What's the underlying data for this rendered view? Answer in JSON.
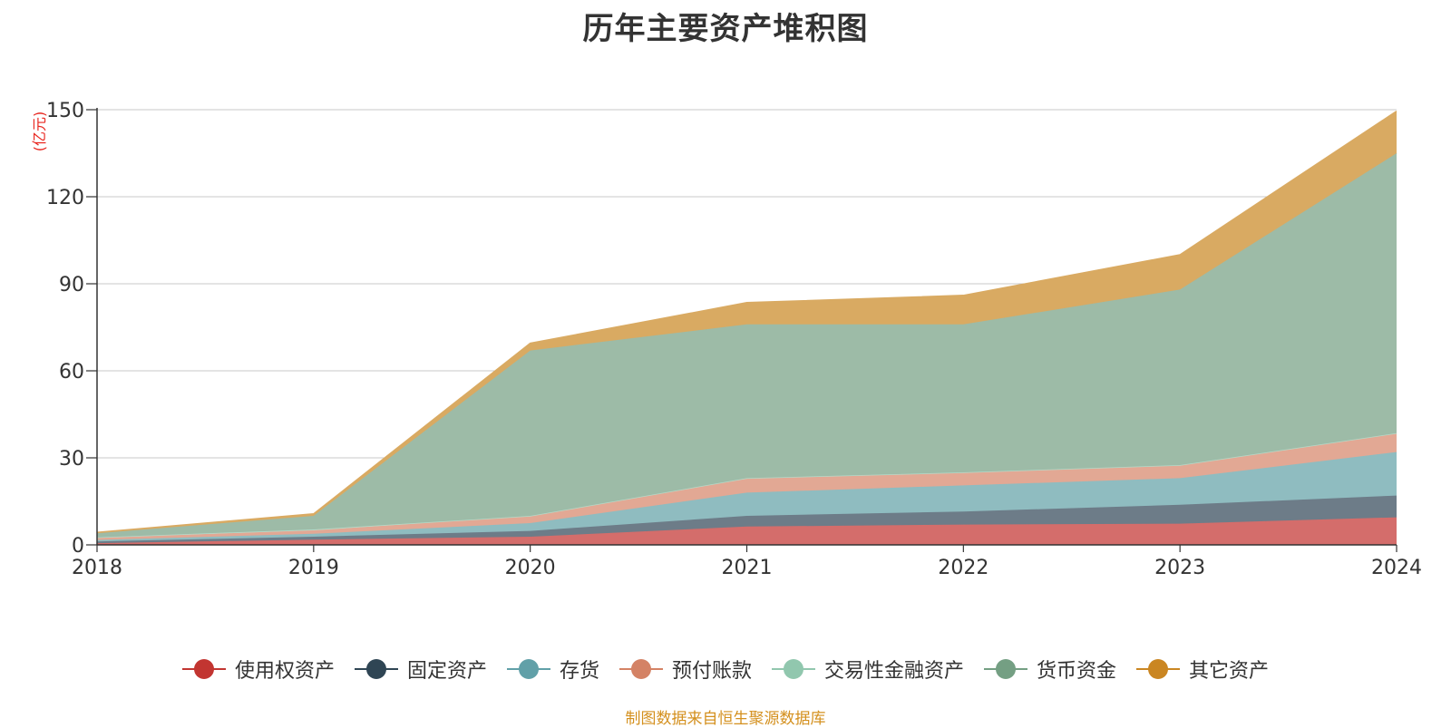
{
  "chart_data": {
    "type": "area",
    "stacked": true,
    "title": "历年主要资产堆积图",
    "unit_label": "(亿元)",
    "categories": [
      "2018",
      "2019",
      "2020",
      "2021",
      "2022",
      "2023",
      "2024"
    ],
    "ylim": [
      0,
      150
    ],
    "yticks": [
      0,
      30,
      60,
      90,
      120,
      150
    ],
    "grid": true,
    "legend_position": "bottom",
    "series": [
      {
        "name": "使用权资产",
        "color": "#c23531",
        "fill": "#d46d6b",
        "values": [
          0.6,
          1.8,
          2.8,
          6.3,
          7.0,
          7.3,
          9.5
        ]
      },
      {
        "name": "固定资产",
        "color": "#2f4554",
        "fill": "#6d7c88",
        "values": [
          0.6,
          1.0,
          2.0,
          3.7,
          4.5,
          6.5,
          7.5
        ]
      },
      {
        "name": "存货",
        "color": "#61a0a8",
        "fill": "#8fbcc0",
        "values": [
          0.5,
          1.0,
          2.7,
          8.0,
          9.0,
          9.2,
          15.0
        ]
      },
      {
        "name": "预付账款",
        "color": "#d48265",
        "fill": "#e2a894",
        "values": [
          0.8,
          1.2,
          2.5,
          5.0,
          4.5,
          4.5,
          6.5
        ]
      },
      {
        "name": "交易性金融资产",
        "color": "#91c7ae",
        "fill": "#b5dac9",
        "values": [
          0.1,
          0.3,
          0.0,
          0.0,
          0.0,
          0.0,
          0.0
        ]
      },
      {
        "name": "货币资金",
        "color": "#749f83",
        "fill": "#9dbba7",
        "values": [
          1.4,
          4.7,
          57.0,
          53.0,
          51.0,
          60.5,
          96.5
        ]
      },
      {
        "name": "其它资产",
        "color": "#ca8622",
        "fill": "#d9aa62",
        "values": [
          0.3,
          0.7,
          2.5,
          7.5,
          10.0,
          12.0,
          14.5
        ]
      }
    ]
  },
  "source_text": "制图数据来自恒生聚源数据库"
}
